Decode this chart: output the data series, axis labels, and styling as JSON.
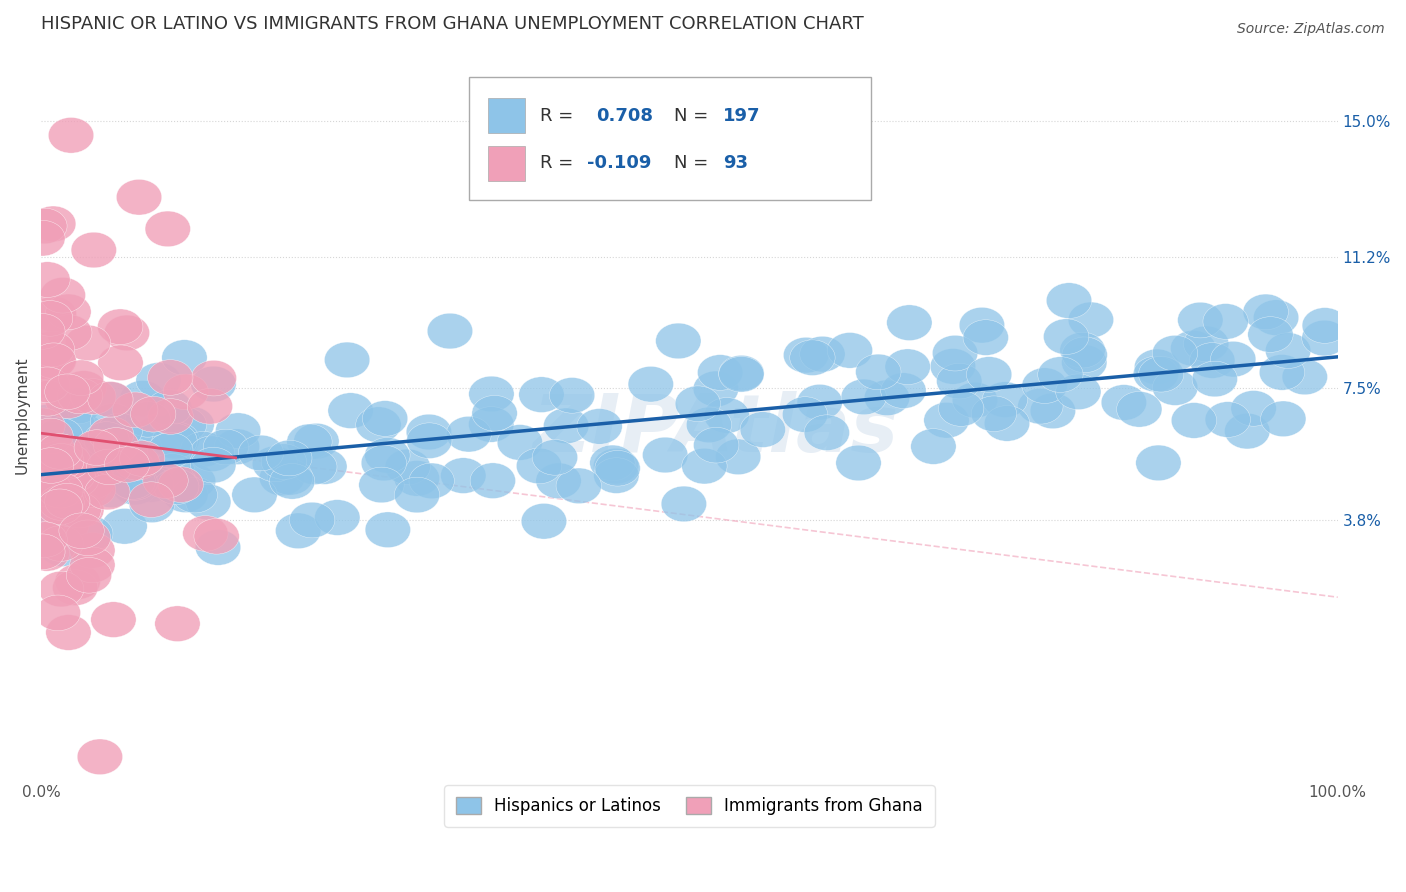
{
  "title": "HISPANIC OR LATINO VS IMMIGRANTS FROM GHANA UNEMPLOYMENT CORRELATION CHART",
  "source": "Source: ZipAtlas.com",
  "ylabel": "Unemployment",
  "xlim": [
    0,
    100
  ],
  "ylim": [
    -3.5,
    17
  ],
  "yticks": [
    3.8,
    7.5,
    11.2,
    15.0
  ],
  "xtick_labels": [
    "0.0%",
    "100.0%"
  ],
  "ytick_labels": [
    "3.8%",
    "7.5%",
    "11.2%",
    "15.0%"
  ],
  "blue_color": "#8ec4e8",
  "pink_color": "#f0a0b8",
  "line_blue": "#1a5fa8",
  "line_pink": "#e05070",
  "line_pink_dash": "#f0a0b8",
  "r_blue": 0.708,
  "n_blue": 197,
  "r_pink": -0.109,
  "n_pink": 93,
  "legend_label_blue": "Hispanics or Latinos",
  "legend_label_pink": "Immigrants from Ghana",
  "watermark": "ZIPAtlas",
  "background_color": "#ffffff",
  "grid_color": "#cccccc",
  "title_fontsize": 13,
  "label_fontsize": 11,
  "tick_fontsize": 11,
  "legend_fontsize": 12,
  "source_fontsize": 10,
  "accent_color": "#1a5fa8"
}
